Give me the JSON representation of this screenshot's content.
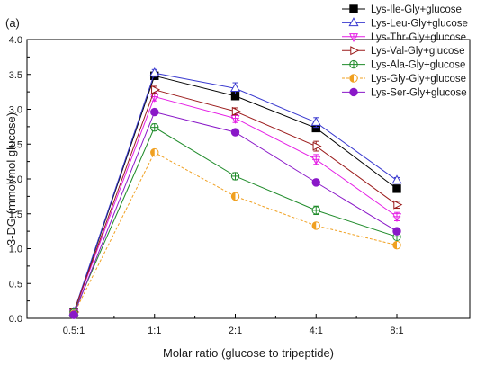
{
  "figure": {
    "panel_label": "(a)"
  },
  "chart_data": {
    "type": "line",
    "title": "",
    "xlabel": "Molar ratio (glucose to tripeptide)",
    "ylabel": "3-DG (mmol/mol glucose)",
    "categories": [
      "0.5:1",
      "1:1",
      "2:1",
      "4:1",
      "8:1"
    ],
    "ylim": [
      0,
      4.0
    ],
    "yticks": [
      "0.0",
      "0.5",
      "1.0",
      "1.5",
      "2.0",
      "2.5",
      "3.0",
      "3.5",
      "4.0"
    ],
    "grid": false,
    "legend_position": "top-right",
    "error_bars": true,
    "series": [
      {
        "name": "Lys-Ile-Gly+glucose",
        "color": "#000000",
        "marker": "filled-square",
        "line": "solid",
        "values": [
          0.08,
          3.48,
          3.19,
          2.73,
          1.86
        ],
        "errors": [
          0.02,
          0.05,
          0.05,
          0.05,
          0.04
        ]
      },
      {
        "name": "Lys-Leu-Gly+glucose",
        "color": "#3a3acf",
        "marker": "open-triangle-up",
        "line": "solid",
        "values": [
          0.09,
          3.52,
          3.3,
          2.81,
          1.98
        ],
        "errors": [
          0.02,
          0.05,
          0.08,
          0.07,
          0.04
        ]
      },
      {
        "name": "Lys-Thr-Gly+glucose",
        "color": "#e51ee5",
        "marker": "triangle-down-cross",
        "line": "solid",
        "values": [
          0.08,
          3.18,
          2.87,
          2.28,
          1.46
        ],
        "errors": [
          0.02,
          0.06,
          0.06,
          0.07,
          0.06
        ]
      },
      {
        "name": "Lys-Val-Gly+glucose",
        "color": "#9b1b1b",
        "marker": "open-triangle-right",
        "line": "solid",
        "values": [
          0.09,
          3.28,
          2.97,
          2.47,
          1.63
        ],
        "errors": [
          0.02,
          0.05,
          0.05,
          0.07,
          0.05
        ]
      },
      {
        "name": "Lys-Ala-Gly+glucose",
        "color": "#1f8b2a",
        "marker": "circle-cross",
        "line": "solid",
        "values": [
          0.08,
          2.74,
          2.04,
          1.55,
          1.17
        ],
        "errors": [
          0.02,
          0.05,
          0.05,
          0.06,
          0.04
        ]
      },
      {
        "name": "Lys-Gly-Gly+glucose",
        "color": "#f0a020",
        "marker": "half-circle",
        "line": "dashed",
        "values": [
          0.06,
          2.38,
          1.75,
          1.33,
          1.05
        ],
        "errors": [
          0.02,
          0.04,
          0.04,
          0.04,
          0.04
        ]
      },
      {
        "name": "Lys-Ser-Gly+glucose",
        "color": "#8a18c8",
        "marker": "filled-circle",
        "line": "solid",
        "values": [
          0.05,
          2.96,
          2.67,
          1.95,
          1.25
        ],
        "errors": [
          0.02,
          0.04,
          0.04,
          0.04,
          0.04
        ]
      }
    ]
  }
}
